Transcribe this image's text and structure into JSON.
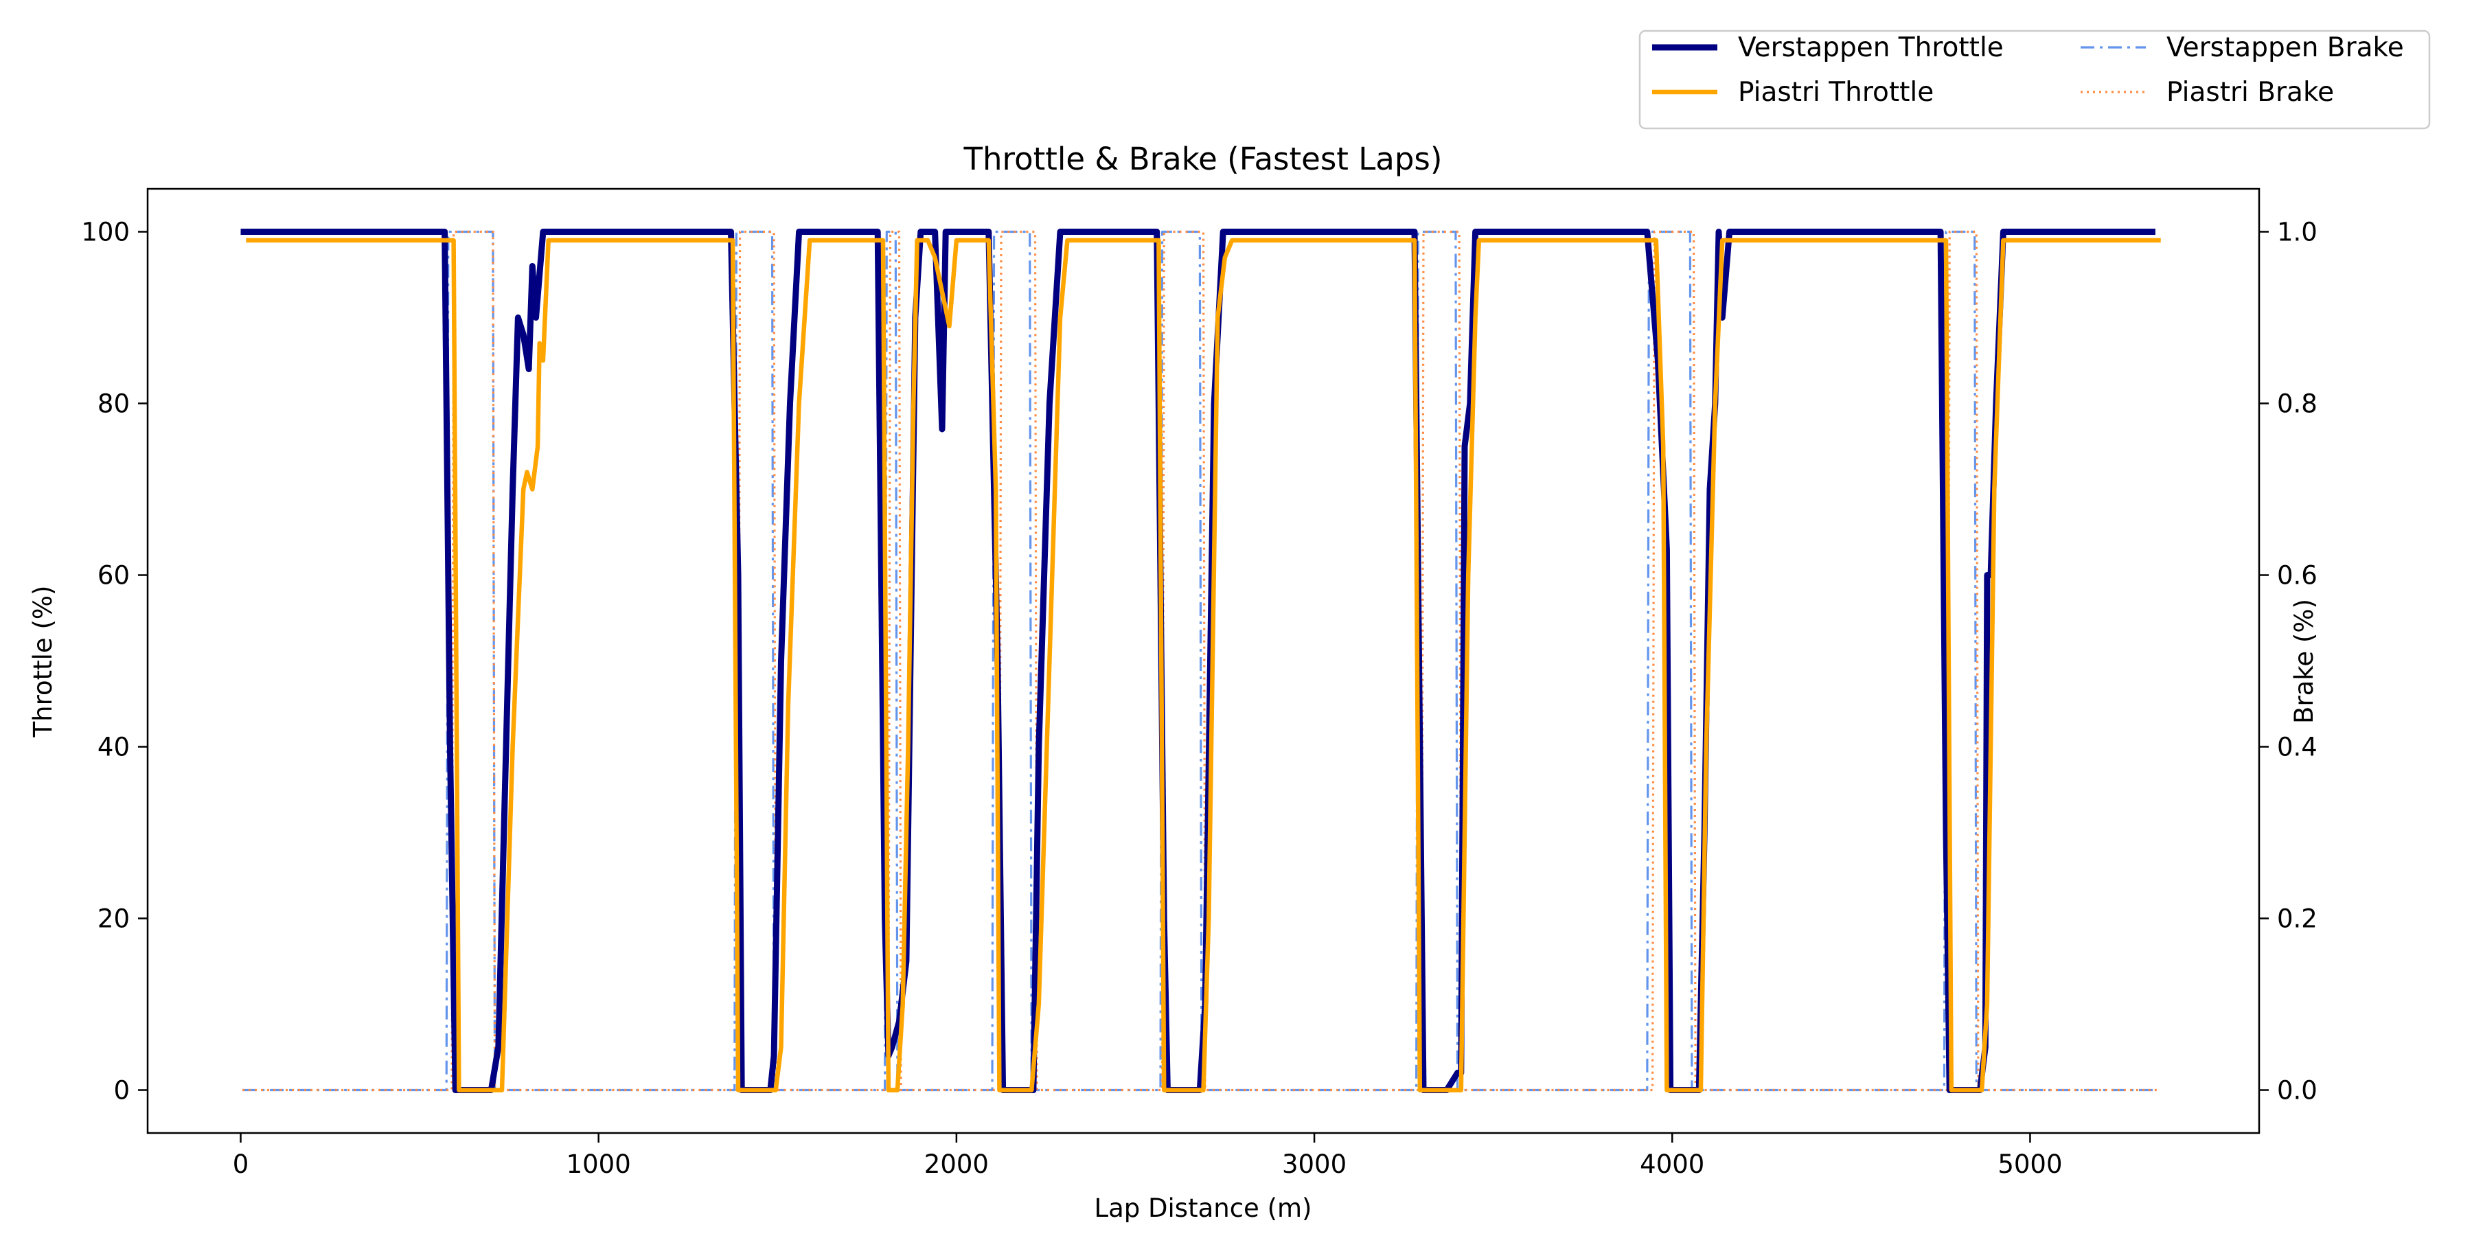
{
  "chart_data": {
    "type": "line",
    "title": "Throttle & Brake (Fastest Laps)",
    "xlabel": "Lap Distance (m)",
    "ylabel": "Throttle (%)",
    "y2label": "Brake (%)",
    "xlim": [
      -260,
      5640
    ],
    "ylim": [
      -5,
      105
    ],
    "y2lim": [
      -0.05,
      1.05
    ],
    "xticks": [
      0,
      1000,
      2000,
      3000,
      4000,
      5000
    ],
    "yticks": [
      0,
      20,
      40,
      60,
      80,
      100
    ],
    "y2ticks": [
      0.0,
      0.2,
      0.4,
      0.6,
      0.8,
      1.0
    ],
    "grid": false,
    "legend": {
      "placement": "top-right, above plot",
      "columns": 2
    },
    "series": [
      {
        "name": "Verstappen Throttle",
        "axis": "left",
        "color": "#000080",
        "style": "solid-thick",
        "points": [
          [
            0,
            100
          ],
          [
            570,
            100
          ],
          [
            585,
            40
          ],
          [
            600,
            0
          ],
          [
            700,
            0
          ],
          [
            720,
            5
          ],
          [
            760,
            70
          ],
          [
            775,
            90
          ],
          [
            790,
            88
          ],
          [
            805,
            84
          ],
          [
            815,
            96
          ],
          [
            825,
            90
          ],
          [
            845,
            100
          ],
          [
            1370,
            100
          ],
          [
            1390,
            60
          ],
          [
            1400,
            0
          ],
          [
            1480,
            0
          ],
          [
            1490,
            4
          ],
          [
            1510,
            50
          ],
          [
            1535,
            80
          ],
          [
            1560,
            100
          ],
          [
            1780,
            100
          ],
          [
            1800,
            20
          ],
          [
            1810,
            4
          ],
          [
            1820,
            5
          ],
          [
            1840,
            8
          ],
          [
            1860,
            15
          ],
          [
            1885,
            90
          ],
          [
            1900,
            100
          ],
          [
            1940,
            100
          ],
          [
            1960,
            77
          ],
          [
            1970,
            100
          ],
          [
            2000,
            100
          ],
          [
            2030,
            100
          ],
          [
            2060,
            100
          ],
          [
            2090,
            100
          ],
          [
            2115,
            50
          ],
          [
            2130,
            0
          ],
          [
            2215,
            0
          ],
          [
            2230,
            40
          ],
          [
            2260,
            80
          ],
          [
            2290,
            100
          ],
          [
            2560,
            100
          ],
          [
            2580,
            20
          ],
          [
            2590,
            0
          ],
          [
            2680,
            0
          ],
          [
            2695,
            10
          ],
          [
            2720,
            80
          ],
          [
            2745,
            100
          ],
          [
            3280,
            100
          ],
          [
            3295,
            40
          ],
          [
            3305,
            0
          ],
          [
            3370,
            0
          ],
          [
            3400,
            2
          ],
          [
            3410,
            2
          ],
          [
            3420,
            75
          ],
          [
            3435,
            80
          ],
          [
            3450,
            100
          ],
          [
            3930,
            100
          ],
          [
            3960,
            85
          ],
          [
            3985,
            63
          ],
          [
            3995,
            0
          ],
          [
            4075,
            0
          ],
          [
            4090,
            30
          ],
          [
            4105,
            70
          ],
          [
            4120,
            80
          ],
          [
            4130,
            100
          ],
          [
            4140,
            90
          ],
          [
            4160,
            100
          ],
          [
            4750,
            100
          ],
          [
            4765,
            30
          ],
          [
            4775,
            0
          ],
          [
            4860,
            0
          ],
          [
            4875,
            5
          ],
          [
            4880,
            60
          ],
          [
            4890,
            60
          ],
          [
            4905,
            80
          ],
          [
            4925,
            100
          ],
          [
            5350,
            100
          ]
        ]
      },
      {
        "name": "Piastri Throttle",
        "axis": "left",
        "color": "#ffa500",
        "style": "solid",
        "points": [
          [
            15,
            99
          ],
          [
            595,
            99
          ],
          [
            610,
            0
          ],
          [
            730,
            0
          ],
          [
            760,
            40
          ],
          [
            790,
            70
          ],
          [
            800,
            72
          ],
          [
            815,
            70
          ],
          [
            830,
            75
          ],
          [
            835,
            87
          ],
          [
            845,
            85
          ],
          [
            860,
            99
          ],
          [
            1375,
            99
          ],
          [
            1390,
            0
          ],
          [
            1495,
            0
          ],
          [
            1510,
            5
          ],
          [
            1530,
            45
          ],
          [
            1560,
            80
          ],
          [
            1590,
            99
          ],
          [
            1795,
            99
          ],
          [
            1810,
            0
          ],
          [
            1835,
            0
          ],
          [
            1850,
            10
          ],
          [
            1865,
            40
          ],
          [
            1880,
            80
          ],
          [
            1890,
            99
          ],
          [
            1920,
            99
          ],
          [
            1940,
            97
          ],
          [
            1960,
            93
          ],
          [
            1980,
            89
          ],
          [
            2000,
            99
          ],
          [
            2060,
            99
          ],
          [
            2090,
            99
          ],
          [
            2110,
            70
          ],
          [
            2120,
            0
          ],
          [
            2210,
            0
          ],
          [
            2230,
            10
          ],
          [
            2260,
            50
          ],
          [
            2290,
            90
          ],
          [
            2310,
            99
          ],
          [
            2565,
            99
          ],
          [
            2580,
            0
          ],
          [
            2690,
            0
          ],
          [
            2705,
            20
          ],
          [
            2730,
            90
          ],
          [
            2750,
            97
          ],
          [
            2770,
            99
          ],
          [
            3280,
            99
          ],
          [
            3295,
            0
          ],
          [
            3410,
            0
          ],
          [
            3430,
            60
          ],
          [
            3450,
            90
          ],
          [
            3460,
            99
          ],
          [
            3955,
            99
          ],
          [
            3975,
            75
          ],
          [
            3985,
            0
          ],
          [
            4080,
            0
          ],
          [
            4095,
            40
          ],
          [
            4120,
            80
          ],
          [
            4140,
            99
          ],
          [
            4765,
            99
          ],
          [
            4780,
            0
          ],
          [
            4865,
            0
          ],
          [
            4880,
            10
          ],
          [
            4900,
            70
          ],
          [
            4925,
            99
          ],
          [
            5365,
            99
          ]
        ]
      },
      {
        "name": "Verstappen Brake",
        "axis": "right",
        "color": "#6495ed",
        "style": "dashdot",
        "points": [
          [
            5,
            0
          ],
          [
            575,
            0
          ],
          [
            580,
            1
          ],
          [
            705,
            1
          ],
          [
            710,
            0
          ],
          [
            1380,
            0
          ],
          [
            1385,
            1
          ],
          [
            1485,
            1
          ],
          [
            1490,
            0
          ],
          [
            1800,
            0
          ],
          [
            1805,
            1
          ],
          [
            1830,
            1
          ],
          [
            1835,
            0
          ],
          [
            2100,
            0
          ],
          [
            2105,
            1
          ],
          [
            2205,
            1
          ],
          [
            2210,
            0
          ],
          [
            2570,
            0
          ],
          [
            2575,
            1
          ],
          [
            2680,
            1
          ],
          [
            2685,
            0
          ],
          [
            3285,
            0
          ],
          [
            3290,
            1
          ],
          [
            3395,
            1
          ],
          [
            3400,
            0
          ],
          [
            3930,
            0
          ],
          [
            3935,
            1
          ],
          [
            4050,
            1
          ],
          [
            4055,
            0
          ],
          [
            4760,
            0
          ],
          [
            4765,
            1
          ],
          [
            4845,
            1
          ],
          [
            4850,
            0
          ],
          [
            5350,
            0
          ]
        ]
      },
      {
        "name": "Piastri Brake",
        "axis": "right",
        "color": "#ff8c42",
        "style": "dotted",
        "points": [
          [
            5,
            0
          ],
          [
            590,
            0
          ],
          [
            595,
            1
          ],
          [
            705,
            1
          ],
          [
            710,
            0
          ],
          [
            1390,
            0
          ],
          [
            1395,
            1
          ],
          [
            1490,
            1
          ],
          [
            1495,
            0
          ],
          [
            1810,
            0
          ],
          [
            1815,
            1
          ],
          [
            1840,
            1
          ],
          [
            1845,
            0
          ],
          [
            2120,
            0
          ],
          [
            2125,
            1
          ],
          [
            2220,
            1
          ],
          [
            2225,
            0
          ],
          [
            2575,
            0
          ],
          [
            2580,
            1
          ],
          [
            2690,
            1
          ],
          [
            2695,
            0
          ],
          [
            3300,
            0
          ],
          [
            3305,
            1
          ],
          [
            3405,
            1
          ],
          [
            3410,
            0
          ],
          [
            3945,
            0
          ],
          [
            3950,
            1
          ],
          [
            4060,
            1
          ],
          [
            4065,
            0
          ],
          [
            4770,
            0
          ],
          [
            4775,
            1
          ],
          [
            4850,
            1
          ],
          [
            4855,
            0
          ],
          [
            5360,
            0
          ]
        ]
      }
    ]
  }
}
